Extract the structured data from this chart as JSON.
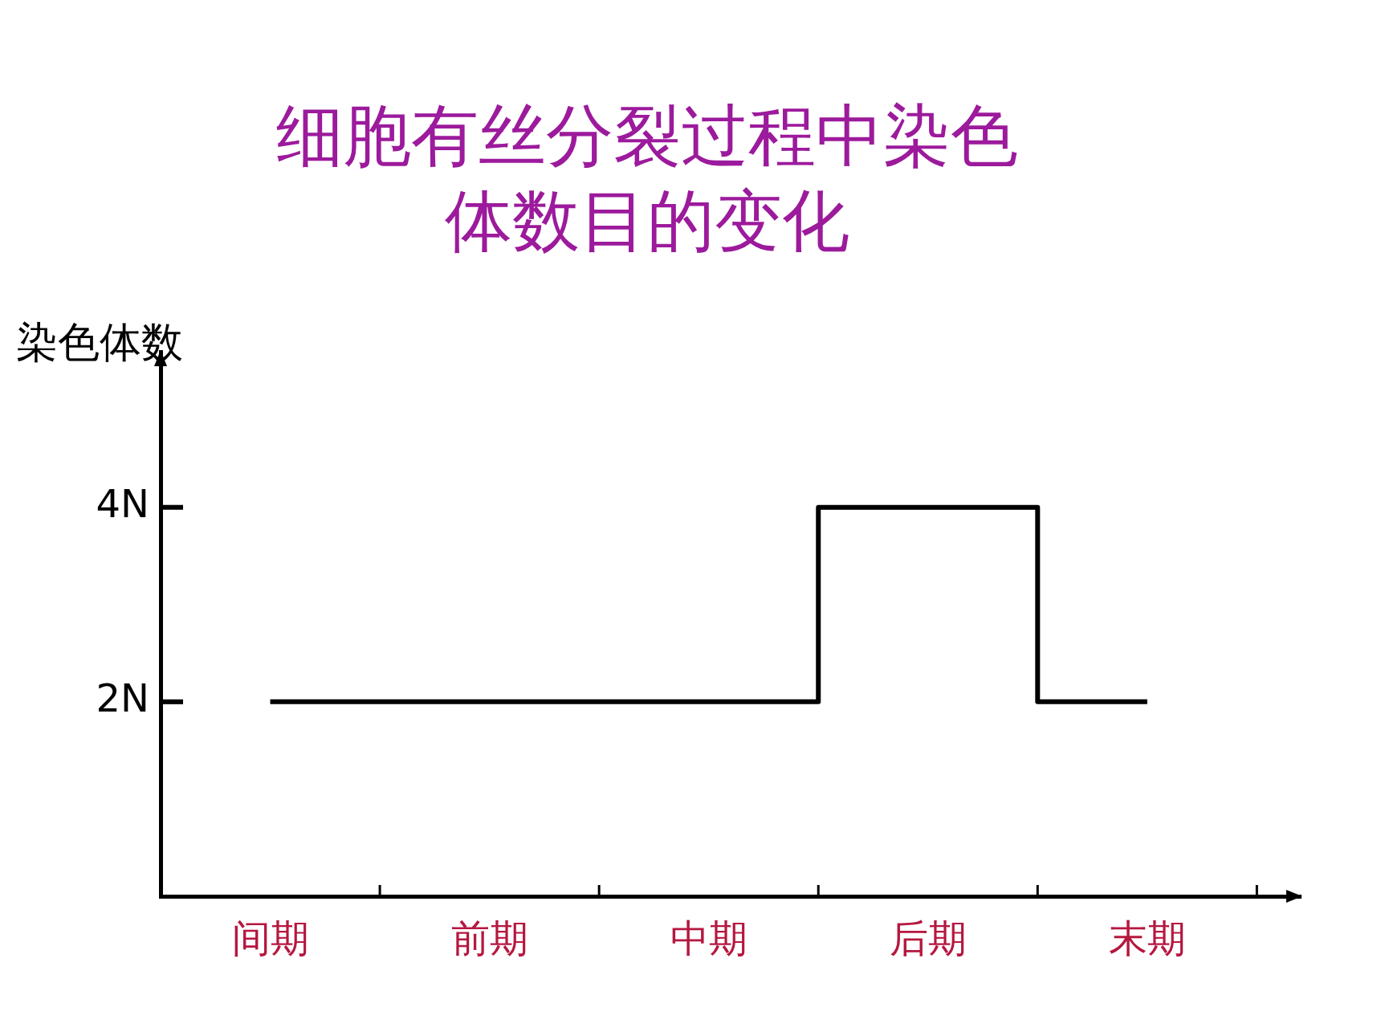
{
  "chart_data": {
    "type": "step",
    "title": "细胞有丝分裂过程中染色体数目的变化",
    "ylabel": "染色体数",
    "categories": [
      "间期",
      "前期",
      "中期",
      "后期",
      "末期"
    ],
    "series": [
      {
        "color": "#000000",
        "values": [
          2,
          2,
          2,
          4,
          2
        ]
      }
    ],
    "ylim": [
      0,
      5.6
    ],
    "yticks": [
      {
        "value": 2,
        "label": "2N"
      },
      {
        "value": 4,
        "label": "4N"
      }
    ],
    "grid": false,
    "legend": false,
    "marker": "none"
  }
}
